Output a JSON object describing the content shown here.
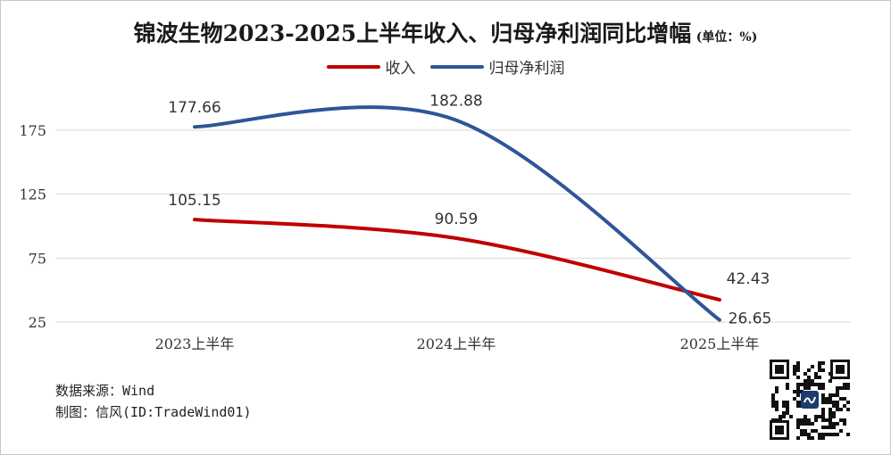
{
  "title": "锦波生物2023-2025上半年收入、归母净利润同比增幅",
  "unit": "(单位：%)",
  "source": {
    "data_source": "数据来源：Wind",
    "made_by": "制图：信风(ID:TradeWind01)"
  },
  "colors": {
    "revenue": "#c00000",
    "profit": "#2f5597",
    "grid": "#d9d9d9",
    "axis_text": "#333333"
  },
  "chart_data": {
    "type": "line",
    "categories": [
      "2023上半年",
      "2024上半年",
      "2025上半年"
    ],
    "series": [
      {
        "name": "收入",
        "values": [
          105.15,
          90.59,
          42.43
        ],
        "labels": [
          "105.15",
          "90.59",
          "42.43"
        ]
      },
      {
        "name": "归母净利润",
        "values": [
          177.66,
          182.88,
          26.65
        ],
        "labels": [
          "177.66",
          "182.88",
          "26.65"
        ]
      }
    ],
    "yticks": [
      "25",
      "75",
      "125",
      "175"
    ],
    "ylim": [
      25,
      200
    ],
    "grid": true,
    "legend_position": "top"
  },
  "qr_icon": "qr-code-icon"
}
